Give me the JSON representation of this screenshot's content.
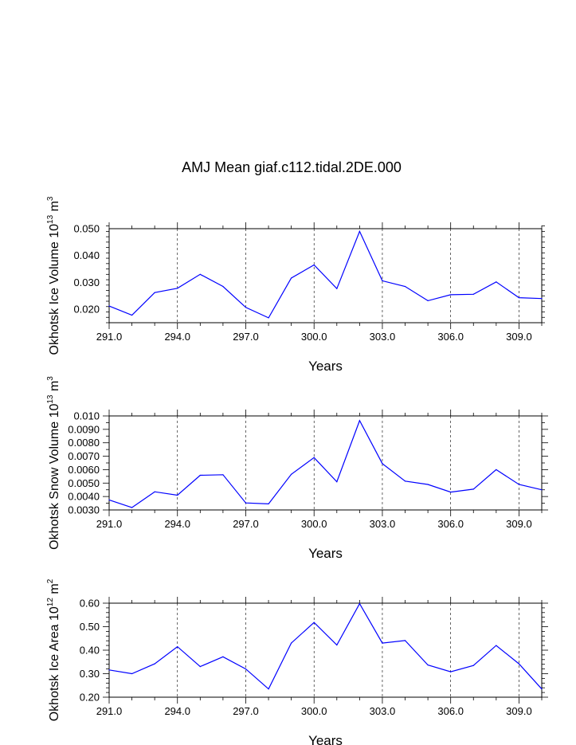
{
  "title": "AMJ Mean giaf.c112.tidal.2DE.000",
  "chart_data": [
    {
      "type": "line",
      "name": "ice-volume",
      "ylabel": {
        "main": "Okhotsk Ice Volume 10",
        "exp": "13",
        "unit": " m",
        "unit_exp": "3"
      },
      "xlabel": "Years",
      "xlim": [
        291,
        310
      ],
      "ylim": [
        0.015,
        0.05
      ],
      "xticks": [
        291,
        294,
        297,
        300,
        303,
        306,
        309
      ],
      "xtick_labels": [
        "291.0",
        "294.0",
        "297.0",
        "300.0",
        "303.0",
        "306.0",
        "309.0"
      ],
      "yticks": [
        0.02,
        0.03,
        0.04,
        0.05
      ],
      "ytick_labels": [
        "0.020",
        "0.030",
        "0.040",
        "0.050"
      ],
      "yminor_step": 0.002,
      "grid": "dashed vertical",
      "line_color": "#0000ff",
      "x": [
        291,
        292,
        293,
        294,
        295,
        296,
        297,
        298,
        299,
        300,
        301,
        302,
        303,
        304,
        305,
        306,
        307,
        308,
        309,
        310
      ],
      "values": [
        0.0212,
        0.0178,
        0.0262,
        0.0278,
        0.033,
        0.0285,
        0.0207,
        0.0168,
        0.0316,
        0.0365,
        0.0277,
        0.049,
        0.0306,
        0.0285,
        0.0232,
        0.0254,
        0.0256,
        0.0302,
        0.0243,
        0.024
      ]
    },
    {
      "type": "line",
      "name": "snow-volume",
      "ylabel": {
        "main": "Okhotsk Snow Volume 10",
        "exp": "13",
        "unit": " m",
        "unit_exp": "3"
      },
      "xlabel": "Years",
      "xlim": [
        291,
        310
      ],
      "ylim": [
        0.003,
        0.01
      ],
      "xticks": [
        291,
        294,
        297,
        300,
        303,
        306,
        309
      ],
      "xtick_labels": [
        "291.0",
        "294.0",
        "297.0",
        "300.0",
        "303.0",
        "306.0",
        "309.0"
      ],
      "yticks": [
        0.003,
        0.004,
        0.005,
        0.006,
        0.007,
        0.008,
        0.009,
        0.01
      ],
      "ytick_labels": [
        "0.0030",
        "0.0040",
        "0.0050",
        "0.0060",
        "0.0070",
        "0.0080",
        "0.0090",
        "0.010"
      ],
      "yminor_step": 0.0005,
      "grid": "dashed vertical",
      "line_color": "#0000ff",
      "x": [
        291,
        292,
        293,
        294,
        295,
        296,
        297,
        298,
        299,
        300,
        301,
        302,
        303,
        304,
        305,
        306,
        307,
        308,
        309,
        310
      ],
      "values": [
        0.00375,
        0.00318,
        0.00435,
        0.0041,
        0.00558,
        0.00562,
        0.00352,
        0.00345,
        0.00565,
        0.0069,
        0.0051,
        0.00965,
        0.00645,
        0.00515,
        0.0049,
        0.00433,
        0.00455,
        0.006,
        0.0049,
        0.0045
      ]
    },
    {
      "type": "line",
      "name": "ice-area",
      "ylabel": {
        "main": "Okhotsk Ice Area 10",
        "exp": "12",
        "unit": " m",
        "unit_exp": "2"
      },
      "xlabel": "Years",
      "xlim": [
        291,
        310
      ],
      "ylim": [
        0.2,
        0.6
      ],
      "xticks": [
        291,
        294,
        297,
        300,
        303,
        306,
        309
      ],
      "xtick_labels": [
        "291.0",
        "294.0",
        "297.0",
        "300.0",
        "303.0",
        "306.0",
        "309.0"
      ],
      "yticks": [
        0.2,
        0.3,
        0.4,
        0.5,
        0.6
      ],
      "ytick_labels": [
        "0.20",
        "0.30",
        "0.40",
        "0.50",
        "0.60"
      ],
      "yminor_step": 0.02,
      "grid": "dashed vertical",
      "line_color": "#0000ff",
      "x": [
        291,
        292,
        293,
        294,
        295,
        296,
        297,
        298,
        299,
        300,
        301,
        302,
        303,
        304,
        305,
        306,
        307,
        308,
        309,
        310
      ],
      "values": [
        0.316,
        0.3,
        0.342,
        0.415,
        0.33,
        0.372,
        0.32,
        0.235,
        0.43,
        0.518,
        0.422,
        0.598,
        0.43,
        0.441,
        0.337,
        0.308,
        0.335,
        0.42,
        0.342,
        0.235
      ]
    }
  ]
}
